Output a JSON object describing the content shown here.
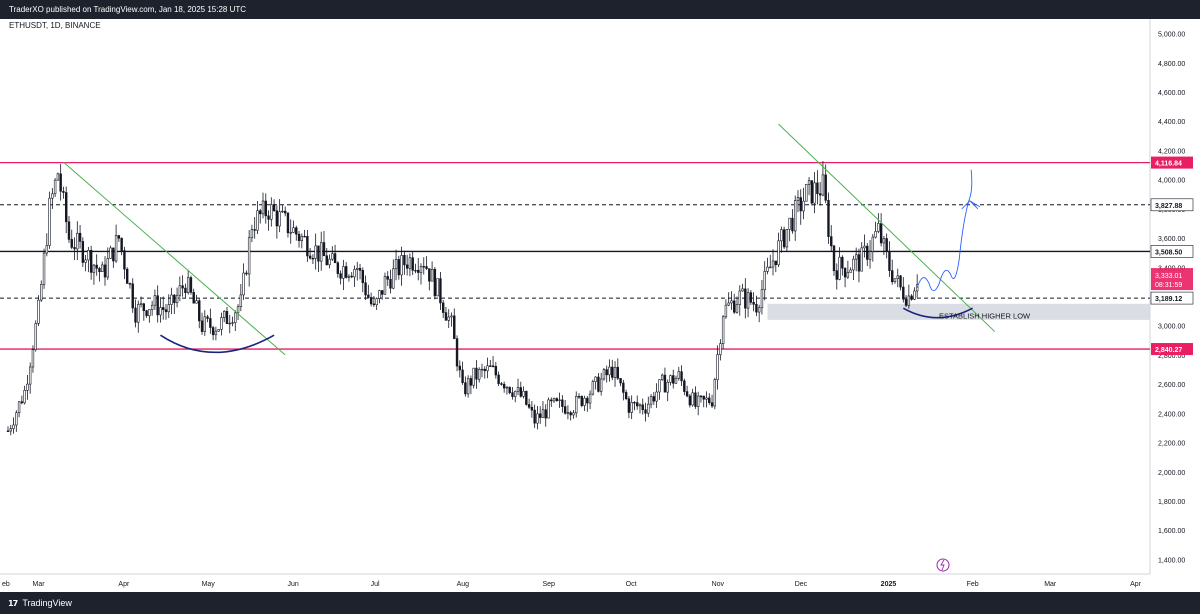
{
  "header": {
    "publisher_text": "TraderXO published on TradingView.com, Jan 18, 2025 15:28 UTC"
  },
  "footer": {
    "logo_glyph": "𝟭𝟳",
    "brand": "TradingView"
  },
  "colors": {
    "up": "#131722",
    "down": "#131722",
    "resistance": "#e91e63",
    "trendline": "#4caf50",
    "arc": "#1a237e",
    "projection": "#2962ff",
    "zone": "#d1d4dc"
  },
  "chart_data": {
    "type": "candlestick",
    "symbol": "ETHUSDT, 1D, BINANCE",
    "ylim": [
      1300,
      5100
    ],
    "y_ticks": [
      5000,
      4800,
      4600,
      4400,
      4200,
      4000,
      3800,
      3600,
      3400,
      3000,
      2800,
      2600,
      2400,
      2200,
      2000,
      1800,
      1600,
      1400
    ],
    "y_tick_labels": [
      "5,000.00",
      "4,800.00",
      "4,600.00",
      "4,400.00",
      "4,200.00",
      "4,000.00",
      "3,800.00",
      "3,600.00",
      "3,400.00",
      "3,000.00",
      "2,800.00",
      "2,600.00",
      "2,400.00",
      "2,200.00",
      "2,000.00",
      "1,800.00",
      "1,600.00",
      "1,400.00"
    ],
    "x_labels": [
      {
        "label": "eb",
        "day": 0
      },
      {
        "label": "Mar",
        "day": 11
      },
      {
        "label": "Apr",
        "day": 42
      },
      {
        "label": "May",
        "day": 72
      },
      {
        "label": "Jun",
        "day": 103
      },
      {
        "label": "Jul",
        "day": 133
      },
      {
        "label": "Aug",
        "day": 164
      },
      {
        "label": "Sep",
        "day": 195
      },
      {
        "label": "Oct",
        "day": 225
      },
      {
        "label": "Nov",
        "day": 256
      },
      {
        "label": "Dec",
        "day": 286
      },
      {
        "label": "2025",
        "day": 317
      },
      {
        "label": "Feb",
        "day": 348
      },
      {
        "label": "Mar",
        "day": 376
      },
      {
        "label": "Apr",
        "day": 407
      }
    ],
    "x_range_days": [
      0,
      412
    ],
    "price_path": [
      [
        0,
        2280
      ],
      [
        6,
        2550
      ],
      [
        11,
        3100
      ],
      [
        15,
        3800
      ],
      [
        18,
        4050
      ],
      [
        22,
        3600
      ],
      [
        28,
        3500
      ],
      [
        34,
        3350
      ],
      [
        40,
        3600
      ],
      [
        46,
        3100
      ],
      [
        52,
        3150
      ],
      [
        58,
        3100
      ],
      [
        64,
        3300
      ],
      [
        70,
        3000
      ],
      [
        76,
        3000
      ],
      [
        84,
        3150
      ],
      [
        88,
        3700
      ],
      [
        94,
        3800
      ],
      [
        100,
        3700
      ],
      [
        106,
        3600
      ],
      [
        112,
        3500
      ],
      [
        118,
        3400
      ],
      [
        126,
        3400
      ],
      [
        132,
        3100
      ],
      [
        136,
        3300
      ],
      [
        144,
        3450
      ],
      [
        150,
        3450
      ],
      [
        156,
        3200
      ],
      [
        160,
        3000
      ],
      [
        164,
        2550
      ],
      [
        168,
        2650
      ],
      [
        174,
        2700
      ],
      [
        180,
        2600
      ],
      [
        186,
        2500
      ],
      [
        190,
        2350
      ],
      [
        196,
        2450
      ],
      [
        204,
        2450
      ],
      [
        210,
        2550
      ],
      [
        218,
        2700
      ],
      [
        224,
        2450
      ],
      [
        230,
        2450
      ],
      [
        236,
        2600
      ],
      [
        242,
        2650
      ],
      [
        248,
        2450
      ],
      [
        254,
        2500
      ],
      [
        258,
        3100
      ],
      [
        264,
        3200
      ],
      [
        270,
        3150
      ],
      [
        276,
        3450
      ],
      [
        282,
        3700
      ],
      [
        288,
        3900
      ],
      [
        294,
        3950
      ],
      [
        298,
        3400
      ],
      [
        302,
        3400
      ],
      [
        308,
        3450
      ],
      [
        314,
        3650
      ],
      [
        318,
        3400
      ],
      [
        322,
        3250
      ],
      [
        325,
        3200
      ],
      [
        328,
        3333
      ]
    ],
    "levels": [
      {
        "price": 4116.84,
        "label": "4,116.84",
        "style": "solid",
        "color": "#e91e63"
      },
      {
        "price": 3827.88,
        "label": "3,827.88",
        "style": "dashed",
        "color": "#131722"
      },
      {
        "price": 3508.5,
        "label": "3,508.50",
        "style": "solid",
        "color": "#131722"
      },
      {
        "price": 3189.12,
        "label": "3,189.12",
        "style": "dashed",
        "color": "#131722"
      },
      {
        "price": 2840.27,
        "label": "2,840.27",
        "style": "solid",
        "color": "#e91e63"
      }
    ],
    "current_price": {
      "label": "3,333.01",
      "countdown": "08:31:59",
      "price": 3333.01
    },
    "zone": {
      "from": 3040,
      "to": 3150
    },
    "annotation": "ESTABLISH HIGHER LOW"
  }
}
